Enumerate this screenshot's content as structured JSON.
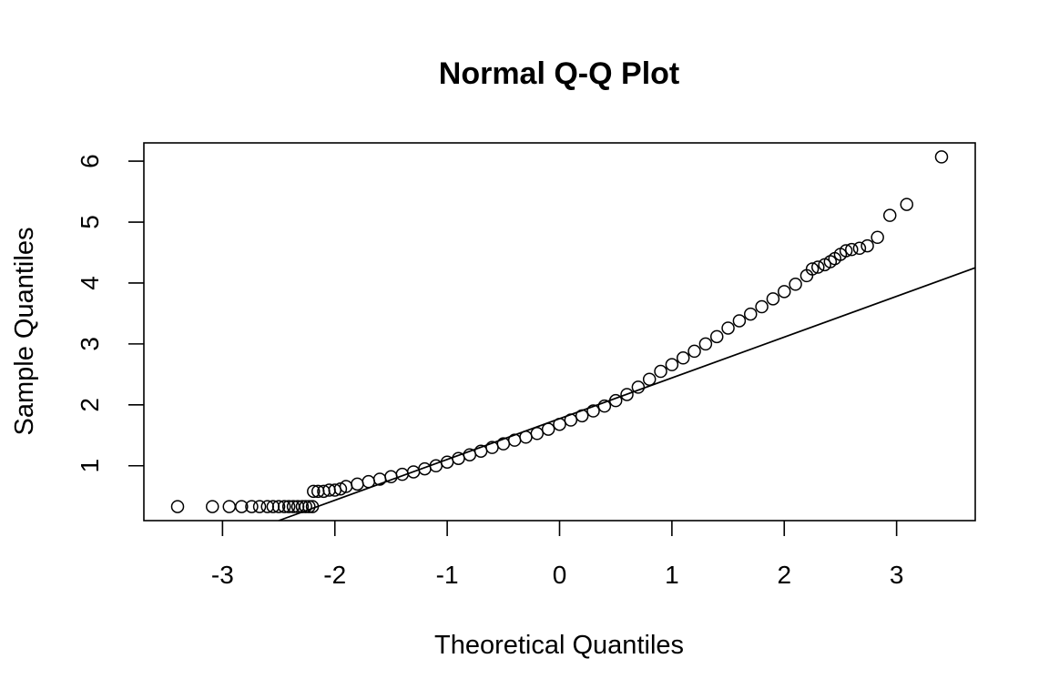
{
  "chart_data": {
    "type": "scatter",
    "title": "Normal Q-Q Plot",
    "xlabel": "Theoretical Quantiles",
    "ylabel": "Sample Quantiles",
    "xlim": [
      -3.7,
      3.7
    ],
    "ylim": [
      0.1,
      6.3
    ],
    "x_ticks": [
      -3,
      -2,
      -1,
      0,
      1,
      2,
      3
    ],
    "y_ticks": [
      1,
      2,
      3,
      4,
      5,
      6
    ],
    "grid": false,
    "legend": "none",
    "point_style": "open-circle",
    "reference_line": {
      "type": "qqline",
      "points": [
        [
          -2.5,
          0.1
        ],
        [
          3.7,
          4.25
        ]
      ]
    },
    "points": [
      [
        -3.4,
        0.33
      ],
      [
        -3.09,
        0.33
      ],
      [
        -2.94,
        0.33
      ],
      [
        -2.83,
        0.33
      ],
      [
        -2.74,
        0.33
      ],
      [
        -2.67,
        0.33
      ],
      [
        -2.6,
        0.33
      ],
      [
        -2.55,
        0.33
      ],
      [
        -2.5,
        0.33
      ],
      [
        -2.45,
        0.33
      ],
      [
        -2.41,
        0.33
      ],
      [
        -2.37,
        0.33
      ],
      [
        -2.33,
        0.33
      ],
      [
        -2.29,
        0.33
      ],
      [
        -2.26,
        0.33
      ],
      [
        -2.23,
        0.33
      ],
      [
        -2.2,
        0.33
      ],
      [
        -2.19,
        0.58
      ],
      [
        -2.15,
        0.58
      ],
      [
        -2.1,
        0.58
      ],
      [
        -2.05,
        0.6
      ],
      [
        -2.0,
        0.6
      ],
      [
        -1.95,
        0.62
      ],
      [
        -1.9,
        0.66
      ],
      [
        -1.8,
        0.7
      ],
      [
        -1.7,
        0.74
      ],
      [
        -1.6,
        0.78
      ],
      [
        -1.5,
        0.82
      ],
      [
        -1.4,
        0.86
      ],
      [
        -1.3,
        0.9
      ],
      [
        -1.2,
        0.95
      ],
      [
        -1.1,
        1.0
      ],
      [
        -1.0,
        1.06
      ],
      [
        -0.9,
        1.12
      ],
      [
        -0.8,
        1.18
      ],
      [
        -0.7,
        1.24
      ],
      [
        -0.6,
        1.3
      ],
      [
        -0.5,
        1.36
      ],
      [
        -0.4,
        1.42
      ],
      [
        -0.3,
        1.47
      ],
      [
        -0.2,
        1.53
      ],
      [
        -0.1,
        1.6
      ],
      [
        0.0,
        1.68
      ],
      [
        0.1,
        1.75
      ],
      [
        0.2,
        1.82
      ],
      [
        0.3,
        1.9
      ],
      [
        0.4,
        1.98
      ],
      [
        0.5,
        2.07
      ],
      [
        0.6,
        2.17
      ],
      [
        0.7,
        2.29
      ],
      [
        0.8,
        2.42
      ],
      [
        0.9,
        2.55
      ],
      [
        1.0,
        2.66
      ],
      [
        1.1,
        2.77
      ],
      [
        1.2,
        2.88
      ],
      [
        1.3,
        3.0
      ],
      [
        1.4,
        3.12
      ],
      [
        1.5,
        3.26
      ],
      [
        1.6,
        3.38
      ],
      [
        1.7,
        3.49
      ],
      [
        1.8,
        3.61
      ],
      [
        1.9,
        3.74
      ],
      [
        2.0,
        3.86
      ],
      [
        2.1,
        3.98
      ],
      [
        2.2,
        4.12
      ],
      [
        2.25,
        4.23
      ],
      [
        2.3,
        4.26
      ],
      [
        2.36,
        4.3
      ],
      [
        2.41,
        4.35
      ],
      [
        2.45,
        4.4
      ],
      [
        2.5,
        4.47
      ],
      [
        2.55,
        4.53
      ],
      [
        2.6,
        4.55
      ],
      [
        2.67,
        4.57
      ],
      [
        2.74,
        4.61
      ],
      [
        2.83,
        4.75
      ],
      [
        2.94,
        5.11
      ],
      [
        3.09,
        5.29
      ],
      [
        3.4,
        6.07
      ]
    ]
  }
}
